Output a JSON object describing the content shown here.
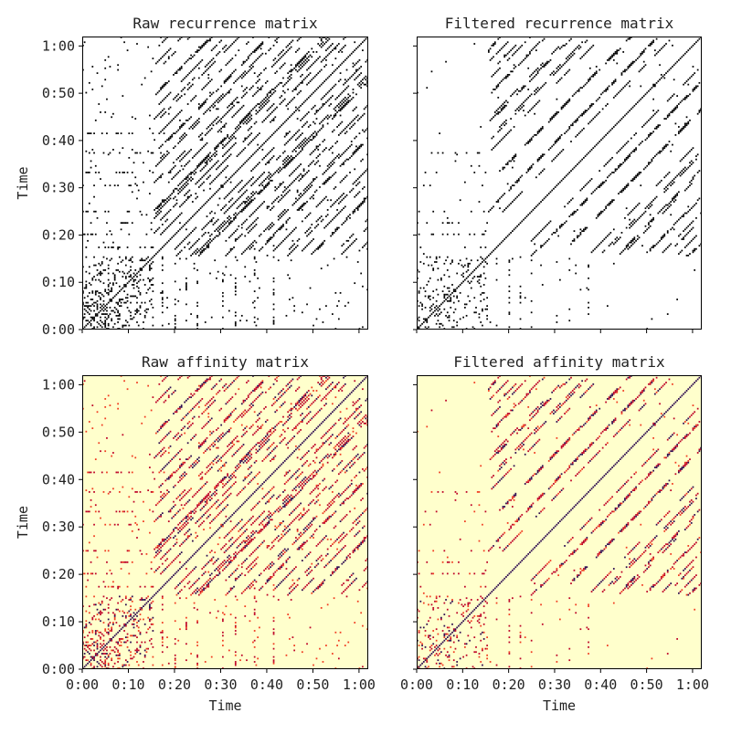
{
  "figure": {
    "colors": {
      "recurrence_background": "#ffffff",
      "recurrence_mark": "#000000",
      "affinity_background": "#ffffcc",
      "affinity_low": "#f03b20",
      "affinity_mid": "#bd0026",
      "affinity_high": "#2c0a4f",
      "frame": "#000000"
    }
  },
  "chart_data": [
    {
      "type": "heatmap",
      "title": "Raw recurrence matrix",
      "xlabel": "",
      "ylabel": "Time",
      "x_ticks": [],
      "y_ticks": [
        "0:00",
        "0:10",
        "0:20",
        "0:30",
        "0:40",
        "0:50",
        "1:00"
      ],
      "x_range_seconds": [
        0,
        62
      ],
      "y_range_seconds": [
        0,
        62
      ],
      "colormap": "binary",
      "grid": false,
      "legend": "none",
      "filtered": false
    },
    {
      "type": "heatmap",
      "title": "Filtered recurrence matrix",
      "xlabel": "",
      "ylabel": "",
      "x_ticks": [],
      "y_ticks": [],
      "x_range_seconds": [
        0,
        62
      ],
      "y_range_seconds": [
        0,
        62
      ],
      "colormap": "binary",
      "grid": false,
      "legend": "none",
      "filtered": true
    },
    {
      "type": "heatmap",
      "title": "Raw affinity matrix",
      "xlabel": "Time",
      "ylabel": "Time",
      "x_ticks": [
        "0:00",
        "0:10",
        "0:20",
        "0:30",
        "0:40",
        "0:50",
        "1:00"
      ],
      "y_ticks": [
        "0:00",
        "0:10",
        "0:20",
        "0:30",
        "0:40",
        "0:50",
        "1:00"
      ],
      "x_range_seconds": [
        0,
        62
      ],
      "y_range_seconds": [
        0,
        62
      ],
      "colormap": "magma_r",
      "grid": false,
      "legend": "none",
      "filtered": false
    },
    {
      "type": "heatmap",
      "title": "Filtered affinity matrix",
      "xlabel": "Time",
      "ylabel": "",
      "x_ticks": [
        "0:00",
        "0:10",
        "0:20",
        "0:30",
        "0:40",
        "0:50",
        "1:00"
      ],
      "y_ticks": [],
      "x_range_seconds": [
        0,
        62
      ],
      "y_range_seconds": [
        0,
        62
      ],
      "colormap": "magma_r",
      "grid": false,
      "legend": "none",
      "filtered": true
    }
  ]
}
